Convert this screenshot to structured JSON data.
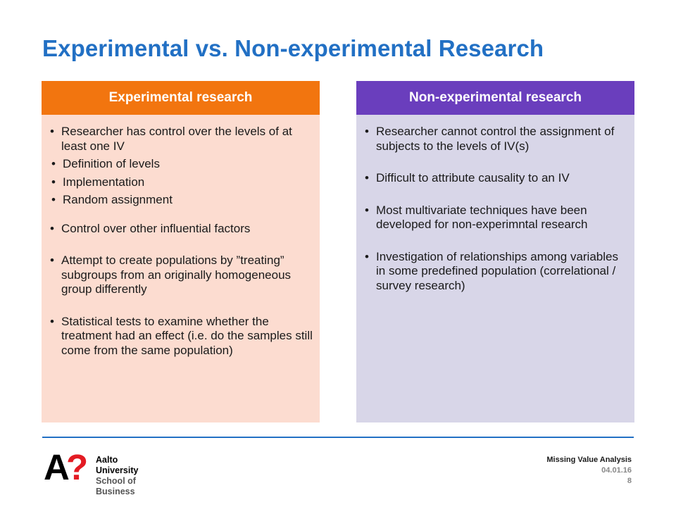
{
  "slide": {
    "title": "Experimental vs. Non-experimental Research"
  },
  "left_panel": {
    "header": "Experimental research",
    "bullets": [
      {
        "text": "Researcher has control over the levels of at least one IV",
        "sub": [
          "Definition of levels",
          "Implementation",
          "Random assignment"
        ]
      },
      {
        "text": "Control over other influential factors"
      },
      {
        "text": "Attempt to create populations by ”treating” subgroups from an originally homogeneous group differently"
      },
      {
        "text": "Statistical tests to examine whether the treatment had an effect (i.e. do the samples still come from the same population)"
      }
    ]
  },
  "right_panel": {
    "header": "Non-experimental research",
    "bullets": [
      {
        "text": "Researcher cannot control the assignment of subjects to the levels of IV(s)"
      },
      {
        "text": "Difficult to attribute causality to an IV"
      },
      {
        "text": "Most multivariate techniques have been developed for non-experimntal research"
      },
      {
        "text": "Investigation of relationships among variables in some predefined population (correlational / survey research)"
      }
    ]
  },
  "footer": {
    "logo_letter": "A",
    "logo_mark": "?",
    "university": "Aalto University",
    "school": "School of Business",
    "lecture": "Missing Value Analysis",
    "date": "04.01.16",
    "page": "8"
  },
  "colors": {
    "title": "#2270c4",
    "left_header": "#f2750f",
    "left_body": "#fcdcd0",
    "right_header": "#6a3ebd",
    "right_body": "#d8d6e8",
    "logo_mark": "#e31b23"
  }
}
